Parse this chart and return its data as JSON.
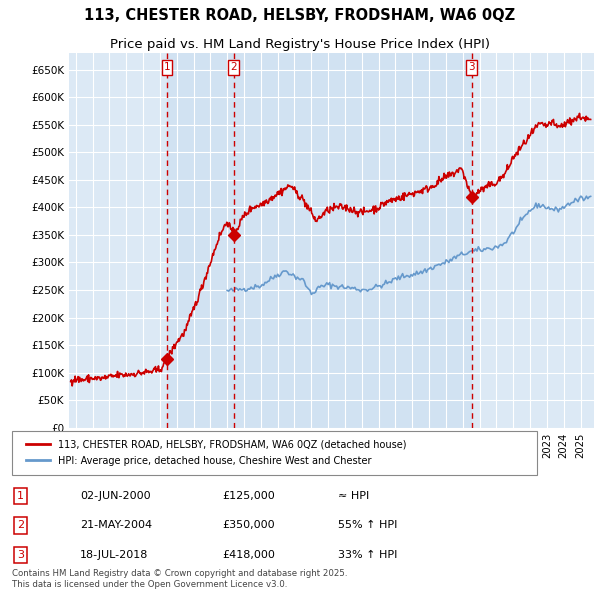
{
  "title": "113, CHESTER ROAD, HELSBY, FRODSHAM, WA6 0QZ",
  "subtitle": "Price paid vs. HM Land Registry's House Price Index (HPI)",
  "ylim": [
    0,
    680000
  ],
  "yticks": [
    0,
    50000,
    100000,
    150000,
    200000,
    250000,
    300000,
    350000,
    400000,
    450000,
    500000,
    550000,
    600000,
    650000
  ],
  "ytick_labels": [
    "£0",
    "£50K",
    "£100K",
    "£150K",
    "£200K",
    "£250K",
    "£300K",
    "£350K",
    "£400K",
    "£450K",
    "£500K",
    "£550K",
    "£600K",
    "£650K"
  ],
  "xlim_start": 1994.6,
  "xlim_end": 2025.8,
  "background_color": "#ffffff",
  "plot_bg_color": "#dce9f5",
  "shade_color": "#c8ddf0",
  "grid_color": "#ffffff",
  "red_line_color": "#cc0000",
  "blue_line_color": "#6699cc",
  "sale_marker_color": "#cc0000",
  "vline_color": "#cc0000",
  "transaction1": {
    "date_decimal": 2000.42,
    "price": 125000,
    "label": "1",
    "date_str": "02-JUN-2000",
    "price_str": "£125,000",
    "hpi_rel": "≈ HPI"
  },
  "transaction2": {
    "date_decimal": 2004.38,
    "price": 350000,
    "label": "2",
    "date_str": "21-MAY-2004",
    "price_str": "£350,000",
    "hpi_rel": "55% ↑ HPI"
  },
  "transaction3": {
    "date_decimal": 2018.54,
    "price": 418000,
    "label": "3",
    "date_str": "18-JUL-2018",
    "price_str": "£418,000",
    "hpi_rel": "33% ↑ HPI"
  },
  "legend1_label": "113, CHESTER ROAD, HELSBY, FRODSHAM, WA6 0QZ (detached house)",
  "legend2_label": "HPI: Average price, detached house, Cheshire West and Chester",
  "footnote": "Contains HM Land Registry data © Crown copyright and database right 2025.\nThis data is licensed under the Open Government Licence v3.0.",
  "title_fontsize": 10.5,
  "subtitle_fontsize": 9.5
}
